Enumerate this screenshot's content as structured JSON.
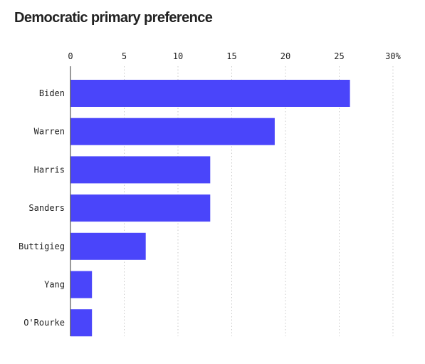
{
  "chart_data": {
    "type": "bar",
    "orientation": "horizontal",
    "title": "Democratic primary preference",
    "categories": [
      "Biden",
      "Warren",
      "Harris",
      "Sanders",
      "Buttigieg",
      "Yang",
      "O'Rourke"
    ],
    "values": [
      26,
      19,
      13,
      13,
      7,
      2,
      2
    ],
    "xlim": [
      0,
      30
    ],
    "xticks": [
      0,
      5,
      10,
      15,
      20,
      25,
      30
    ],
    "xtick_labels": [
      "0",
      "5",
      "10",
      "15",
      "20",
      "25",
      "30%"
    ],
    "xlabel": "",
    "ylabel": "",
    "axis_position": "top",
    "grid": "vertical dotted",
    "legend": "none",
    "bar_color": "#4a45fa",
    "grid_color": "#c8c8c8"
  }
}
